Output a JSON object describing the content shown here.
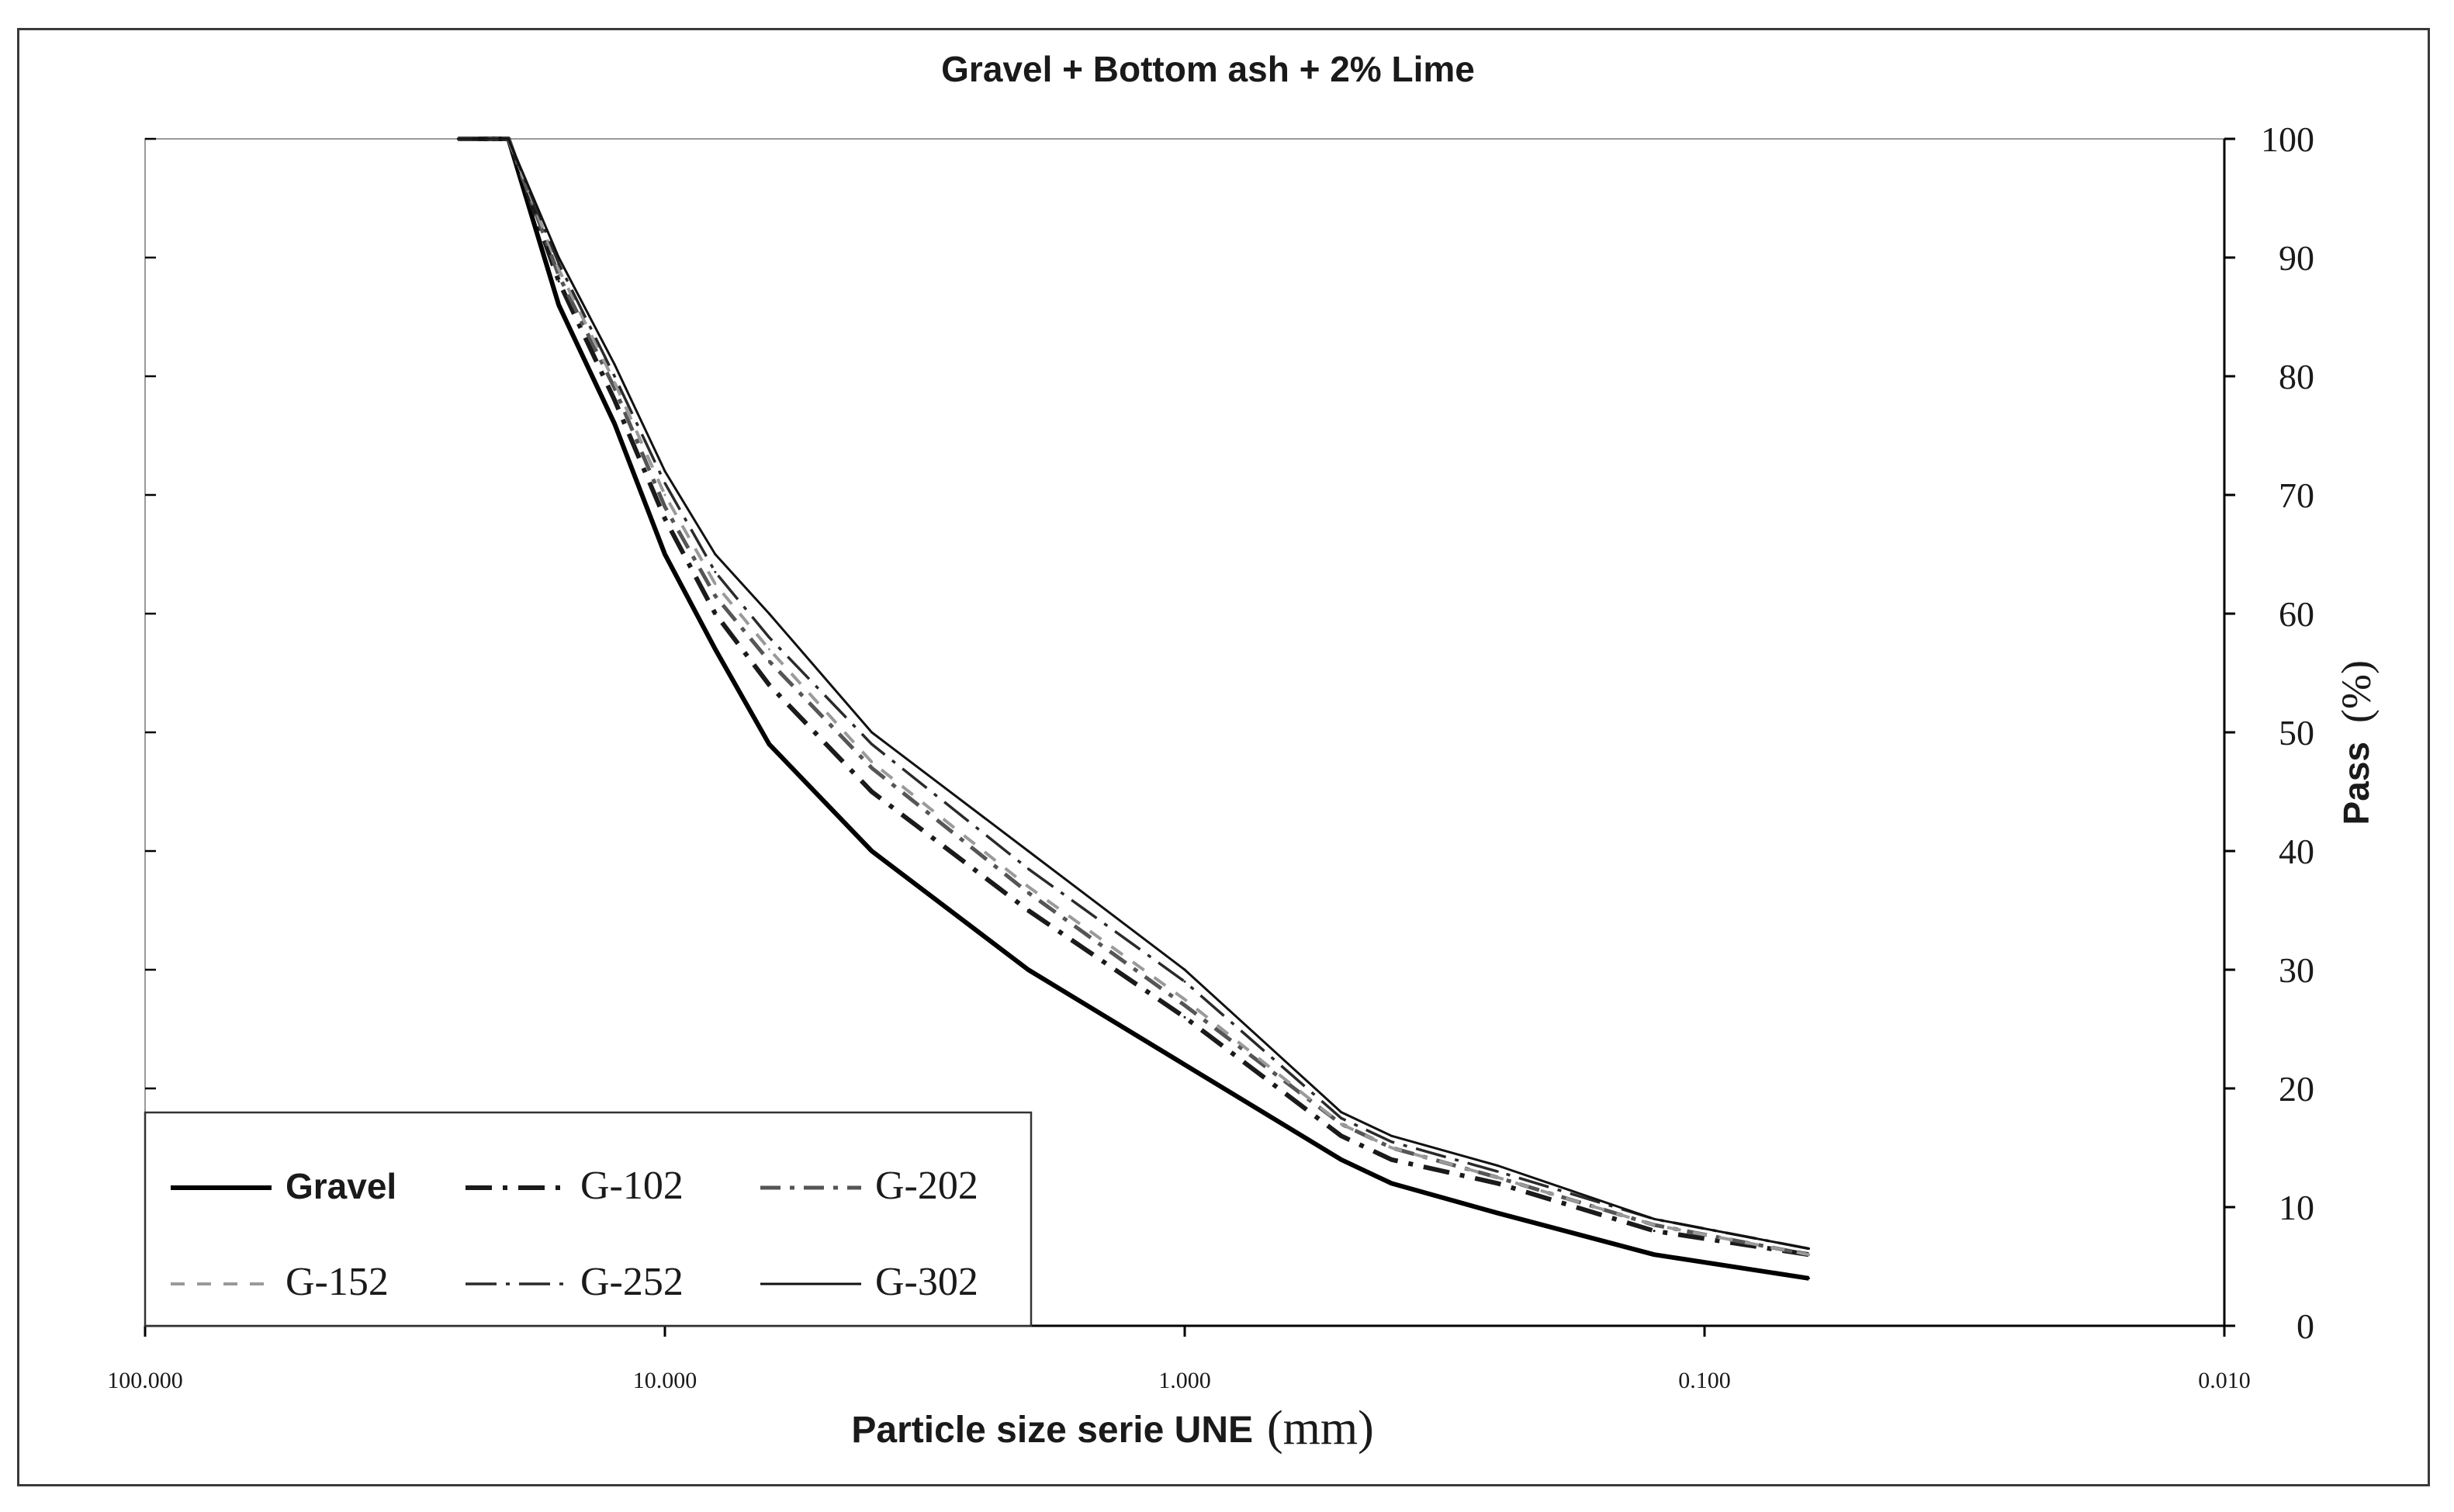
{
  "chart_data": {
    "type": "line",
    "title": "Gravel + Bottom ash + 2% Lime",
    "xlabel": "Particle size serie UNE",
    "xlabel_unit": "(mm)",
    "ylabel": "Pass",
    "ylabel_unit": "(%)",
    "x_scale": "log",
    "x_reversed": true,
    "xlim": [
      100,
      0.01
    ],
    "ylim": [
      0,
      100
    ],
    "x_ticks": [
      100,
      10,
      1,
      0.1,
      0.01
    ],
    "x_tick_labels": [
      "100.000",
      "10.000",
      "1.000",
      "0.100",
      "0.010"
    ],
    "y_ticks": [
      0,
      10,
      20,
      30,
      40,
      50,
      60,
      70,
      80,
      90,
      100
    ],
    "y_tick_labels": [
      "0",
      "10",
      "20",
      "30",
      "40",
      "50",
      "60",
      "70",
      "80",
      "90",
      "100"
    ],
    "y_axis_side": "right",
    "grid": false,
    "legend_position": "bottom-left",
    "x": [
      25,
      20,
      16,
      12.5,
      10,
      8,
      6.3,
      4,
      2,
      1,
      0.5,
      0.4,
      0.25,
      0.125,
      0.063
    ],
    "series": [
      {
        "name": "Gravel",
        "style": "solid-thick",
        "color": "#000000",
        "values": [
          100,
          100,
          86,
          76,
          65,
          57,
          49,
          40,
          30,
          22,
          14,
          12,
          9.5,
          6,
          4
        ]
      },
      {
        "name": "G-102",
        "style": "dash-dot-thick",
        "color": "#1a1a1a",
        "values": [
          100,
          100,
          88,
          78,
          68,
          60,
          54,
          45,
          35,
          26,
          16,
          14,
          12,
          8,
          6
        ]
      },
      {
        "name": "G-202",
        "style": "dash-dot",
        "color": "#555555",
        "values": [
          100,
          100,
          88.5,
          79,
          69,
          61.5,
          56,
          47,
          36.5,
          27,
          17,
          15,
          12.5,
          8.5,
          6
        ]
      },
      {
        "name": "G-152",
        "style": "dash-light",
        "color": "#9a9a9a",
        "values": [
          100,
          100,
          89,
          79.5,
          70,
          62.5,
          57,
          47.5,
          37,
          27.5,
          17,
          15,
          12.5,
          8.5,
          6
        ]
      },
      {
        "name": "G-252",
        "style": "long-dash-dot",
        "color": "#2a2a2a",
        "values": [
          100,
          100,
          89.5,
          80,
          71,
          63.5,
          58,
          49,
          38.5,
          29,
          17.5,
          15.5,
          13,
          9,
          6.5
        ]
      },
      {
        "name": "G-302",
        "style": "solid-thin",
        "color": "#111111",
        "values": [
          100,
          100,
          90,
          81,
          72,
          65,
          60,
          50,
          40,
          30,
          18,
          16,
          13.5,
          9,
          6.5
        ]
      }
    ]
  }
}
